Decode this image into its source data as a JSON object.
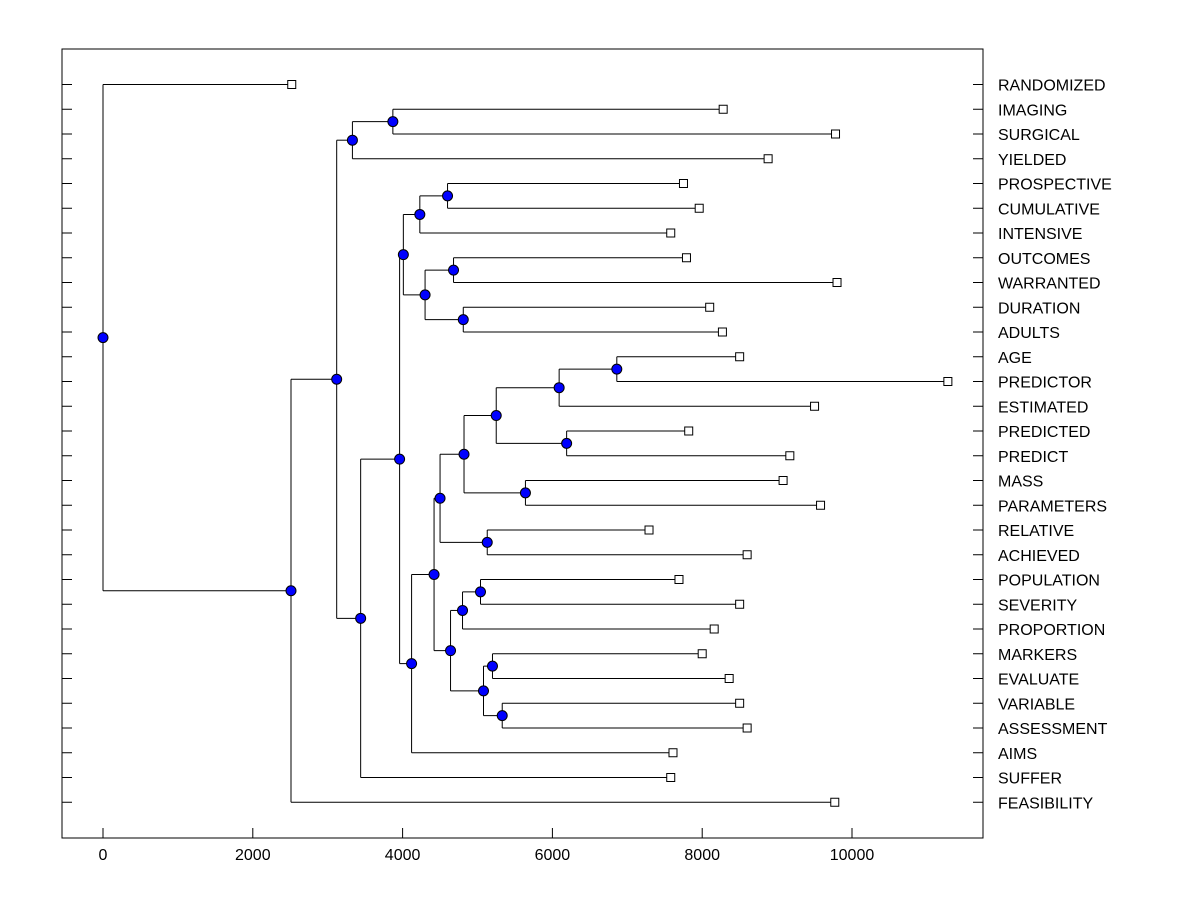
{
  "chart_data": {
    "type": "dendrogram",
    "orientation": "horizontal",
    "x_ticks": [
      0,
      2000,
      4000,
      6000,
      8000,
      10000
    ],
    "xlim": [
      -550,
      11800
    ],
    "leaves": [
      {
        "label": "RANDOMIZED",
        "value": 2520
      },
      {
        "label": "IMAGING",
        "value": 8280
      },
      {
        "label": "SURGICAL",
        "value": 9780
      },
      {
        "label": "YIELDED",
        "value": 8880
      },
      {
        "label": "PROSPECTIVE",
        "value": 7750
      },
      {
        "label": "CUMULATIVE",
        "value": 7960
      },
      {
        "label": "INTENSIVE",
        "value": 7580
      },
      {
        "label": "OUTCOMES",
        "value": 7790
      },
      {
        "label": "WARRANTED",
        "value": 9800
      },
      {
        "label": "DURATION",
        "value": 8100
      },
      {
        "label": "ADULTS",
        "value": 8270
      },
      {
        "label": "AGE",
        "value": 8500
      },
      {
        "label": "PREDICTOR",
        "value": 11280
      },
      {
        "label": "ESTIMATED",
        "value": 9500
      },
      {
        "label": "PREDICTED",
        "value": 7820
      },
      {
        "label": "PREDICT",
        "value": 9170
      },
      {
        "label": "MASS",
        "value": 9080
      },
      {
        "label": "PARAMETERS",
        "value": 9580
      },
      {
        "label": "RELATIVE",
        "value": 7290
      },
      {
        "label": "ACHIEVED",
        "value": 8600
      },
      {
        "label": "POPULATION",
        "value": 7690
      },
      {
        "label": "SEVERITY",
        "value": 8500
      },
      {
        "label": "PROPORTION",
        "value": 8160
      },
      {
        "label": "MARKERS",
        "value": 8000
      },
      {
        "label": "EVALUATE",
        "value": 8360
      },
      {
        "label": "VARIABLE",
        "value": 8500
      },
      {
        "label": "ASSESSMENT",
        "value": 8600
      },
      {
        "label": "AIMS",
        "value": 7610
      },
      {
        "label": "SUFFER",
        "value": 7580
      },
      {
        "label": "FEASIBILITY",
        "value": 9770
      }
    ],
    "nodes": [
      {
        "id": "n1",
        "children": [
          "IMAGING",
          "SURGICAL"
        ],
        "value": 3870
      },
      {
        "id": "n2",
        "children": [
          "n1",
          "YIELDED"
        ],
        "value": 3330
      },
      {
        "id": "n3",
        "children": [
          "PROSPECTIVE",
          "CUMULATIVE"
        ],
        "value": 4600
      },
      {
        "id": "n4",
        "children": [
          "n3",
          "INTENSIVE"
        ],
        "value": 4230
      },
      {
        "id": "n5",
        "children": [
          "OUTCOMES",
          "WARRANTED"
        ],
        "value": 4680
      },
      {
        "id": "n6",
        "children": [
          "DURATION",
          "ADULTS"
        ],
        "value": 4810
      },
      {
        "id": "n7",
        "children": [
          "n5",
          "n6"
        ],
        "value": 4300
      },
      {
        "id": "n8",
        "children": [
          "n4",
          "n7"
        ],
        "value": 4010
      },
      {
        "id": "n9",
        "children": [
          "AGE",
          "PREDICTOR"
        ],
        "value": 6860
      },
      {
        "id": "n10",
        "children": [
          "n9",
          "ESTIMATED"
        ],
        "value": 6090
      },
      {
        "id": "n11",
        "children": [
          "PREDICTED",
          "PREDICT"
        ],
        "value": 6190
      },
      {
        "id": "n12",
        "children": [
          "n10",
          "n11"
        ],
        "value": 5250
      },
      {
        "id": "n13",
        "children": [
          "MASS",
          "PARAMETERS"
        ],
        "value": 5640
      },
      {
        "id": "n14",
        "children": [
          "n12",
          "n13"
        ],
        "value": 4820
      },
      {
        "id": "n15",
        "children": [
          "RELATIVE",
          "ACHIEVED"
        ],
        "value": 5130
      },
      {
        "id": "n16",
        "children": [
          "n14",
          "n15"
        ],
        "value": 4500
      },
      {
        "id": "n17",
        "children": [
          "POPULATION",
          "SEVERITY"
        ],
        "value": 5040
      },
      {
        "id": "n18",
        "children": [
          "n17",
          "PROPORTION"
        ],
        "value": 4800
      },
      {
        "id": "n19",
        "children": [
          "MARKERS",
          "EVALUATE"
        ],
        "value": 5200
      },
      {
        "id": "n20",
        "children": [
          "VARIABLE",
          "ASSESSMENT"
        ],
        "value": 5330
      },
      {
        "id": "n21",
        "children": [
          "n19",
          "n20"
        ],
        "value": 5080
      },
      {
        "id": "n22",
        "children": [
          "n18",
          "n21"
        ],
        "value": 4640
      },
      {
        "id": "n23",
        "children": [
          "n16",
          "n22"
        ],
        "value": 4420
      },
      {
        "id": "n24",
        "children": [
          "n23",
          "AIMS"
        ],
        "value": 4120
      },
      {
        "id": "n25",
        "children": [
          "n24",
          "SUFFER"
        ],
        "value": 3440
      },
      {
        "id": "n26",
        "children": [
          "n25",
          "FEASIBILITY"
        ],
        "value": 2510
      },
      {
        "id": "n27",
        "children": [
          "n8",
          "n26"
        ],
        "value": 3960
      },
      {
        "id": "n28",
        "children": [
          "n2",
          "n27"
        ],
        "value": 3120
      },
      {
        "id": "n29",
        "children": [
          "n28",
          "FEASIBILITY_BRANCH"
        ],
        "value": 2510
      },
      {
        "id": "root",
        "children": [
          "RANDOMIZED",
          "n29"
        ],
        "value": 0
      }
    ],
    "colors": {
      "node_fill": "#0000ff",
      "line": "#000000",
      "leaf_fill": "#ffffff"
    }
  }
}
